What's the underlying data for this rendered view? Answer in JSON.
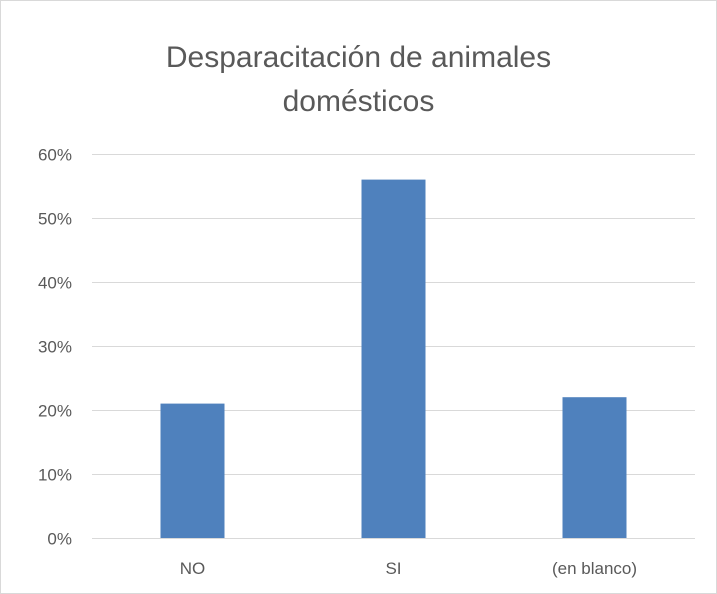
{
  "chart_data": {
    "type": "bar",
    "title": "Desparacitación de animales domésticos",
    "title_lines": [
      "Desparacitación de animales",
      "domésticos"
    ],
    "categories": [
      "NO",
      "SI",
      "(en blanco)"
    ],
    "values": [
      0.21,
      0.56,
      0.22
    ],
    "ylim": [
      0,
      0.6
    ],
    "yticks": [
      0,
      0.1,
      0.2,
      0.3,
      0.4,
      0.5,
      0.6
    ],
    "ytick_labels": [
      "0%",
      "10%",
      "20%",
      "30%",
      "40%",
      "50%",
      "60%"
    ],
    "xlabel": "",
    "ylabel": "",
    "grid": true,
    "legend": "none",
    "colors": {
      "bar": "#4f81bd",
      "grid": "#d9d9d9",
      "text": "#595959"
    }
  }
}
